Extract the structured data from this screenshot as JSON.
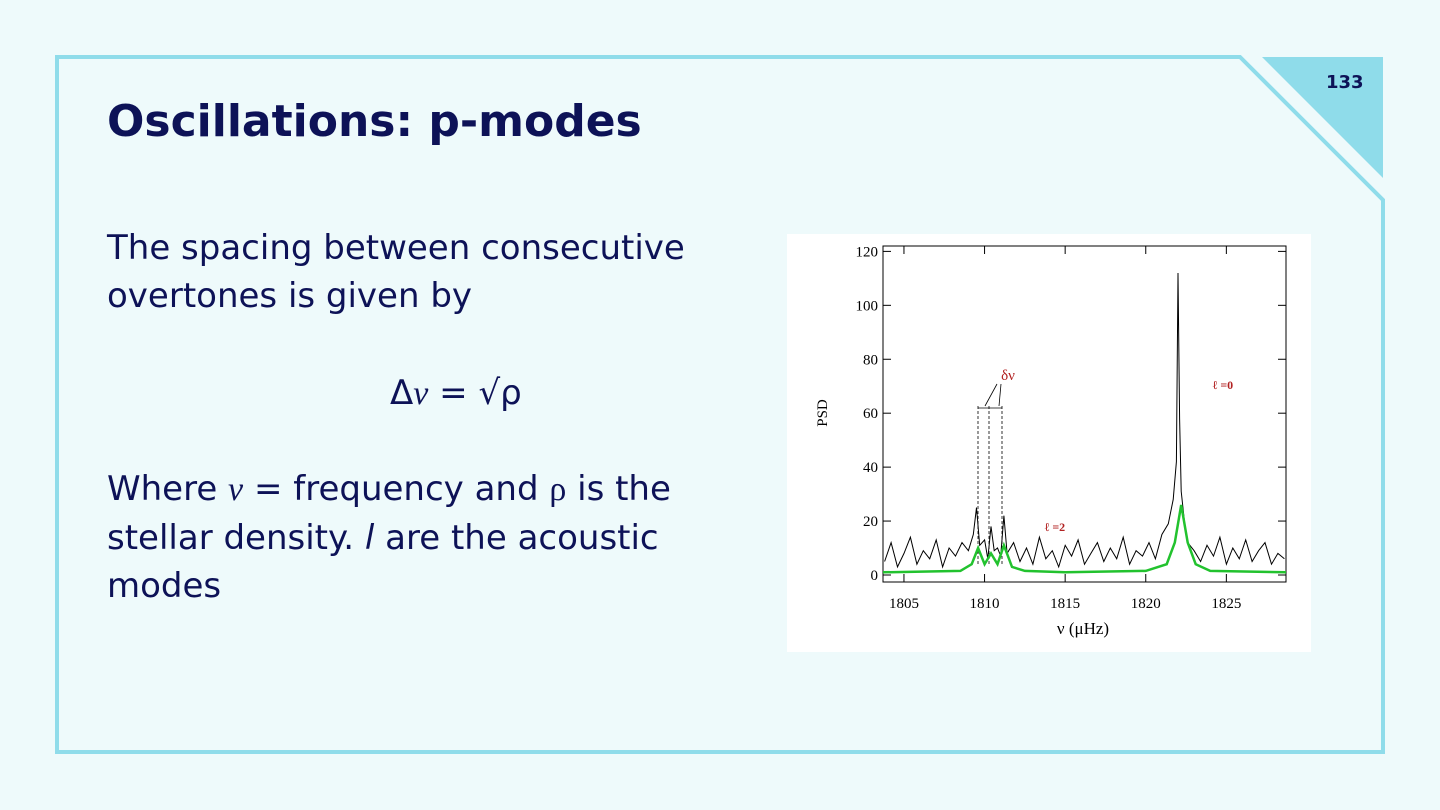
{
  "slide": {
    "page_number": "133",
    "title": "Oscillations: p-modes",
    "paragraph_1": [
      "The spacing between consecutive",
      "overtones is given by"
    ],
    "formula": {
      "delta": "Δ",
      "nu": "ν",
      "rest": " = √ρ"
    },
    "paragraph_2": {
      "line_1": [
        "Where ",
        "ν",
        " = frequency and ",
        "ρ",
        " is the"
      ],
      "line_2": [
        "stellar density. ",
        "l",
        " are the acoustic"
      ],
      "line_3": "modes"
    }
  },
  "figure": {
    "type": "line",
    "ylabel": "PSD",
    "xlabel": "ν (μHz)",
    "annotations": {
      "spacing": "δν",
      "l0": "ℓ =0",
      "l2": "ℓ =2"
    },
    "xlim": [
      1803.7,
      1828.7
    ],
    "ylim": [
      -2.6,
      122
    ],
    "xticks": [
      1805,
      1810,
      1815,
      1820,
      1825
    ],
    "yticks": [
      0,
      20,
      40,
      60,
      80,
      100,
      120
    ],
    "spectrum": {
      "color": "#000000",
      "x": [
        1803.8,
        1804.2,
        1804.6,
        1805.0,
        1805.4,
        1805.8,
        1806.2,
        1806.6,
        1807.0,
        1807.4,
        1807.8,
        1808.2,
        1808.6,
        1809.0,
        1809.3,
        1809.5,
        1809.7,
        1810.0,
        1810.2,
        1810.4,
        1810.6,
        1810.8,
        1811.0,
        1811.2,
        1811.4,
        1811.8,
        1812.2,
        1812.6,
        1813.0,
        1813.4,
        1813.8,
        1814.2,
        1814.6,
        1815.0,
        1815.4,
        1815.8,
        1816.2,
        1816.6,
        1817.0,
        1817.4,
        1817.8,
        1818.2,
        1818.6,
        1819.0,
        1819.4,
        1819.8,
        1820.2,
        1820.6,
        1821.0,
        1821.4,
        1821.7,
        1821.9,
        1822.0,
        1822.1,
        1822.2,
        1822.4,
        1822.6,
        1823.0,
        1823.4,
        1823.8,
        1824.2,
        1824.6,
        1825.0,
        1825.4,
        1825.8,
        1826.2,
        1826.6,
        1827.0,
        1827.4,
        1827.8,
        1828.2,
        1828.6
      ],
      "values": [
        5,
        12,
        3,
        8,
        14,
        4,
        9,
        6,
        13,
        3,
        10,
        7,
        12,
        9,
        15,
        25,
        11,
        13,
        6,
        18,
        9,
        10,
        7,
        22,
        8,
        12,
        5,
        10,
        4,
        14,
        6,
        9,
        3,
        11,
        7,
        13,
        4,
        8,
        12,
        5,
        10,
        6,
        14,
        4,
        9,
        7,
        12,
        6,
        15,
        19,
        28,
        42,
        112,
        58,
        31,
        20,
        12,
        9,
        5,
        11,
        7,
        14,
        4,
        10,
        6,
        13,
        5,
        9,
        12,
        4,
        8,
        6
      ]
    },
    "fit": {
      "color": "#22c22e",
      "x": [
        1803.7,
        1808.5,
        1809.2,
        1809.6,
        1810.0,
        1810.4,
        1810.8,
        1811.2,
        1811.7,
        1812.5,
        1815,
        1820,
        1821.3,
        1821.8,
        1822.2,
        1822.6,
        1823.1,
        1824,
        1828.7
      ],
      "values": [
        1,
        1.5,
        4,
        10,
        4,
        8,
        4,
        11,
        3,
        1.5,
        1,
        1.5,
        4,
        12,
        26,
        12,
        4,
        1.5,
        1
      ]
    }
  }
}
